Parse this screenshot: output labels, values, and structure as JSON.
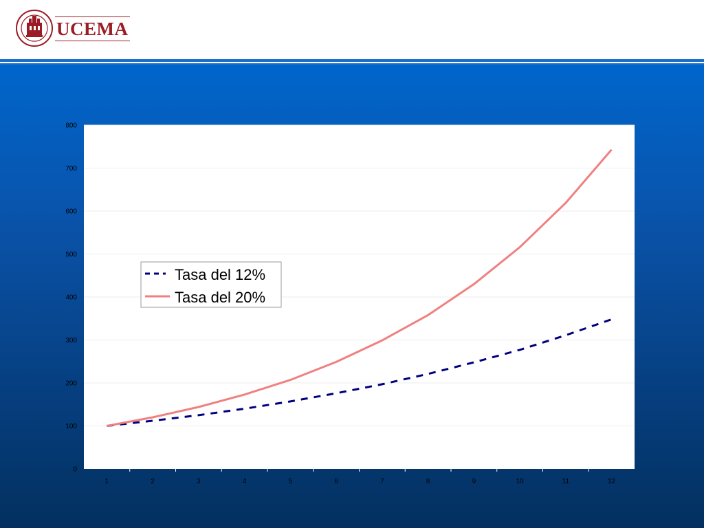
{
  "header": {
    "logo_wordmark": "UCEMA",
    "seal_text": "UNIVERSIDAD DEL CEMA",
    "seal_year": "MCMLXXVIII"
  },
  "colors": {
    "brand": "#9b1c24",
    "header_rule": "#1e6fc9",
    "background_top": "#0066cc",
    "background_bottom": "#03305f",
    "series_12": "#00007f",
    "series_20": "#f08080"
  },
  "chart_data": {
    "type": "line",
    "title": "",
    "xlabel": "",
    "ylabel": "",
    "x": [
      1,
      2,
      3,
      4,
      5,
      6,
      7,
      8,
      9,
      10,
      11,
      12
    ],
    "ylim": [
      0,
      800
    ],
    "yticks": [
      0,
      100,
      200,
      300,
      400,
      500,
      600,
      700,
      800
    ],
    "grid": true,
    "legend": "left-middle",
    "series": [
      {
        "name": "Tasa del 12%",
        "style": "dashed",
        "color": "#00007f",
        "values": [
          100,
          112,
          125,
          140,
          157,
          176,
          197,
          221,
          248,
          277,
          311,
          348
        ]
      },
      {
        "name": "Tasa del 20%",
        "style": "solid",
        "color": "#f08080",
        "values": [
          100,
          120,
          144,
          173,
          207,
          249,
          299,
          358,
          430,
          516,
          619,
          743
        ]
      }
    ]
  }
}
